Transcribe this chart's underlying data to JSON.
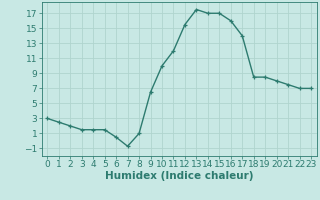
{
  "x": [
    0,
    1,
    2,
    3,
    4,
    5,
    6,
    7,
    8,
    9,
    10,
    11,
    12,
    13,
    14,
    15,
    16,
    17,
    18,
    19,
    20,
    21,
    22,
    23
  ],
  "y": [
    3,
    2.5,
    2,
    1.5,
    1.5,
    1.5,
    0.5,
    -0.7,
    1,
    6.5,
    10,
    12,
    15.5,
    17.5,
    17,
    17,
    16,
    14,
    8.5,
    8.5,
    8,
    7.5,
    7,
    7
  ],
  "line_color": "#2d7b6f",
  "marker": "+",
  "bg_color": "#c8e8e4",
  "grid_color": "#b0d4ce",
  "xlabel": "Humidex (Indice chaleur)",
  "yticks": [
    -1,
    1,
    3,
    5,
    7,
    9,
    11,
    13,
    15,
    17
  ],
  "xticks": [
    0,
    1,
    2,
    3,
    4,
    5,
    6,
    7,
    8,
    9,
    10,
    11,
    12,
    13,
    14,
    15,
    16,
    17,
    18,
    19,
    20,
    21,
    22,
    23
  ],
  "ylim": [
    -2,
    18.5
  ],
  "xlim": [
    -0.5,
    23.5
  ],
  "tick_color": "#2d7b6f",
  "label_color": "#2d7b6f",
  "font_size_tick": 6.5,
  "font_size_label": 7.5
}
